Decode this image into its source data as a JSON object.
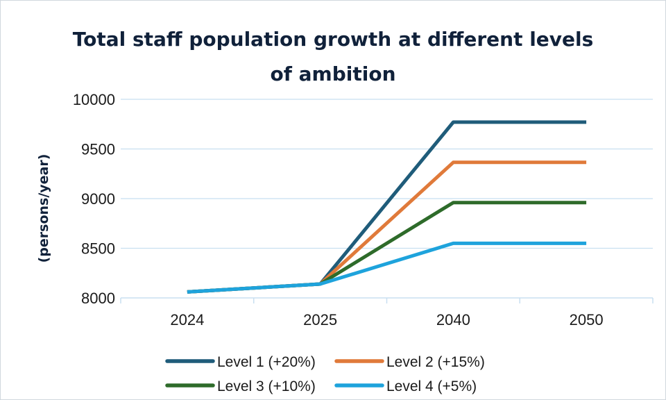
{
  "chart_data": {
    "type": "line",
    "title_line1": "Total staff population growth at different levels",
    "title_line2": "of ambition",
    "ylabel": "(persons/year)",
    "xlabel": "",
    "categories": [
      "2024",
      "2025",
      "2040",
      "2050"
    ],
    "ylim": [
      8000,
      10000
    ],
    "yticks": [
      8000,
      8500,
      9000,
      9500,
      10000
    ],
    "grid": "horizontal",
    "legend_position": "bottom",
    "series": [
      {
        "name": "Level 1 (+20%)",
        "color": "#1f5c7a",
        "values": [
          8060,
          8140,
          9770,
          9770
        ]
      },
      {
        "name": "Level 2 (+15%)",
        "color": "#e07a3a",
        "values": [
          8060,
          8140,
          9365,
          9365
        ]
      },
      {
        "name": "Level 3 (+10%)",
        "color": "#2e6b2a",
        "values": [
          8060,
          8140,
          8960,
          8960
        ]
      },
      {
        "name": "Level 4 (+5%)",
        "color": "#1ea3dc",
        "values": [
          8060,
          8140,
          8550,
          8550
        ]
      }
    ]
  }
}
